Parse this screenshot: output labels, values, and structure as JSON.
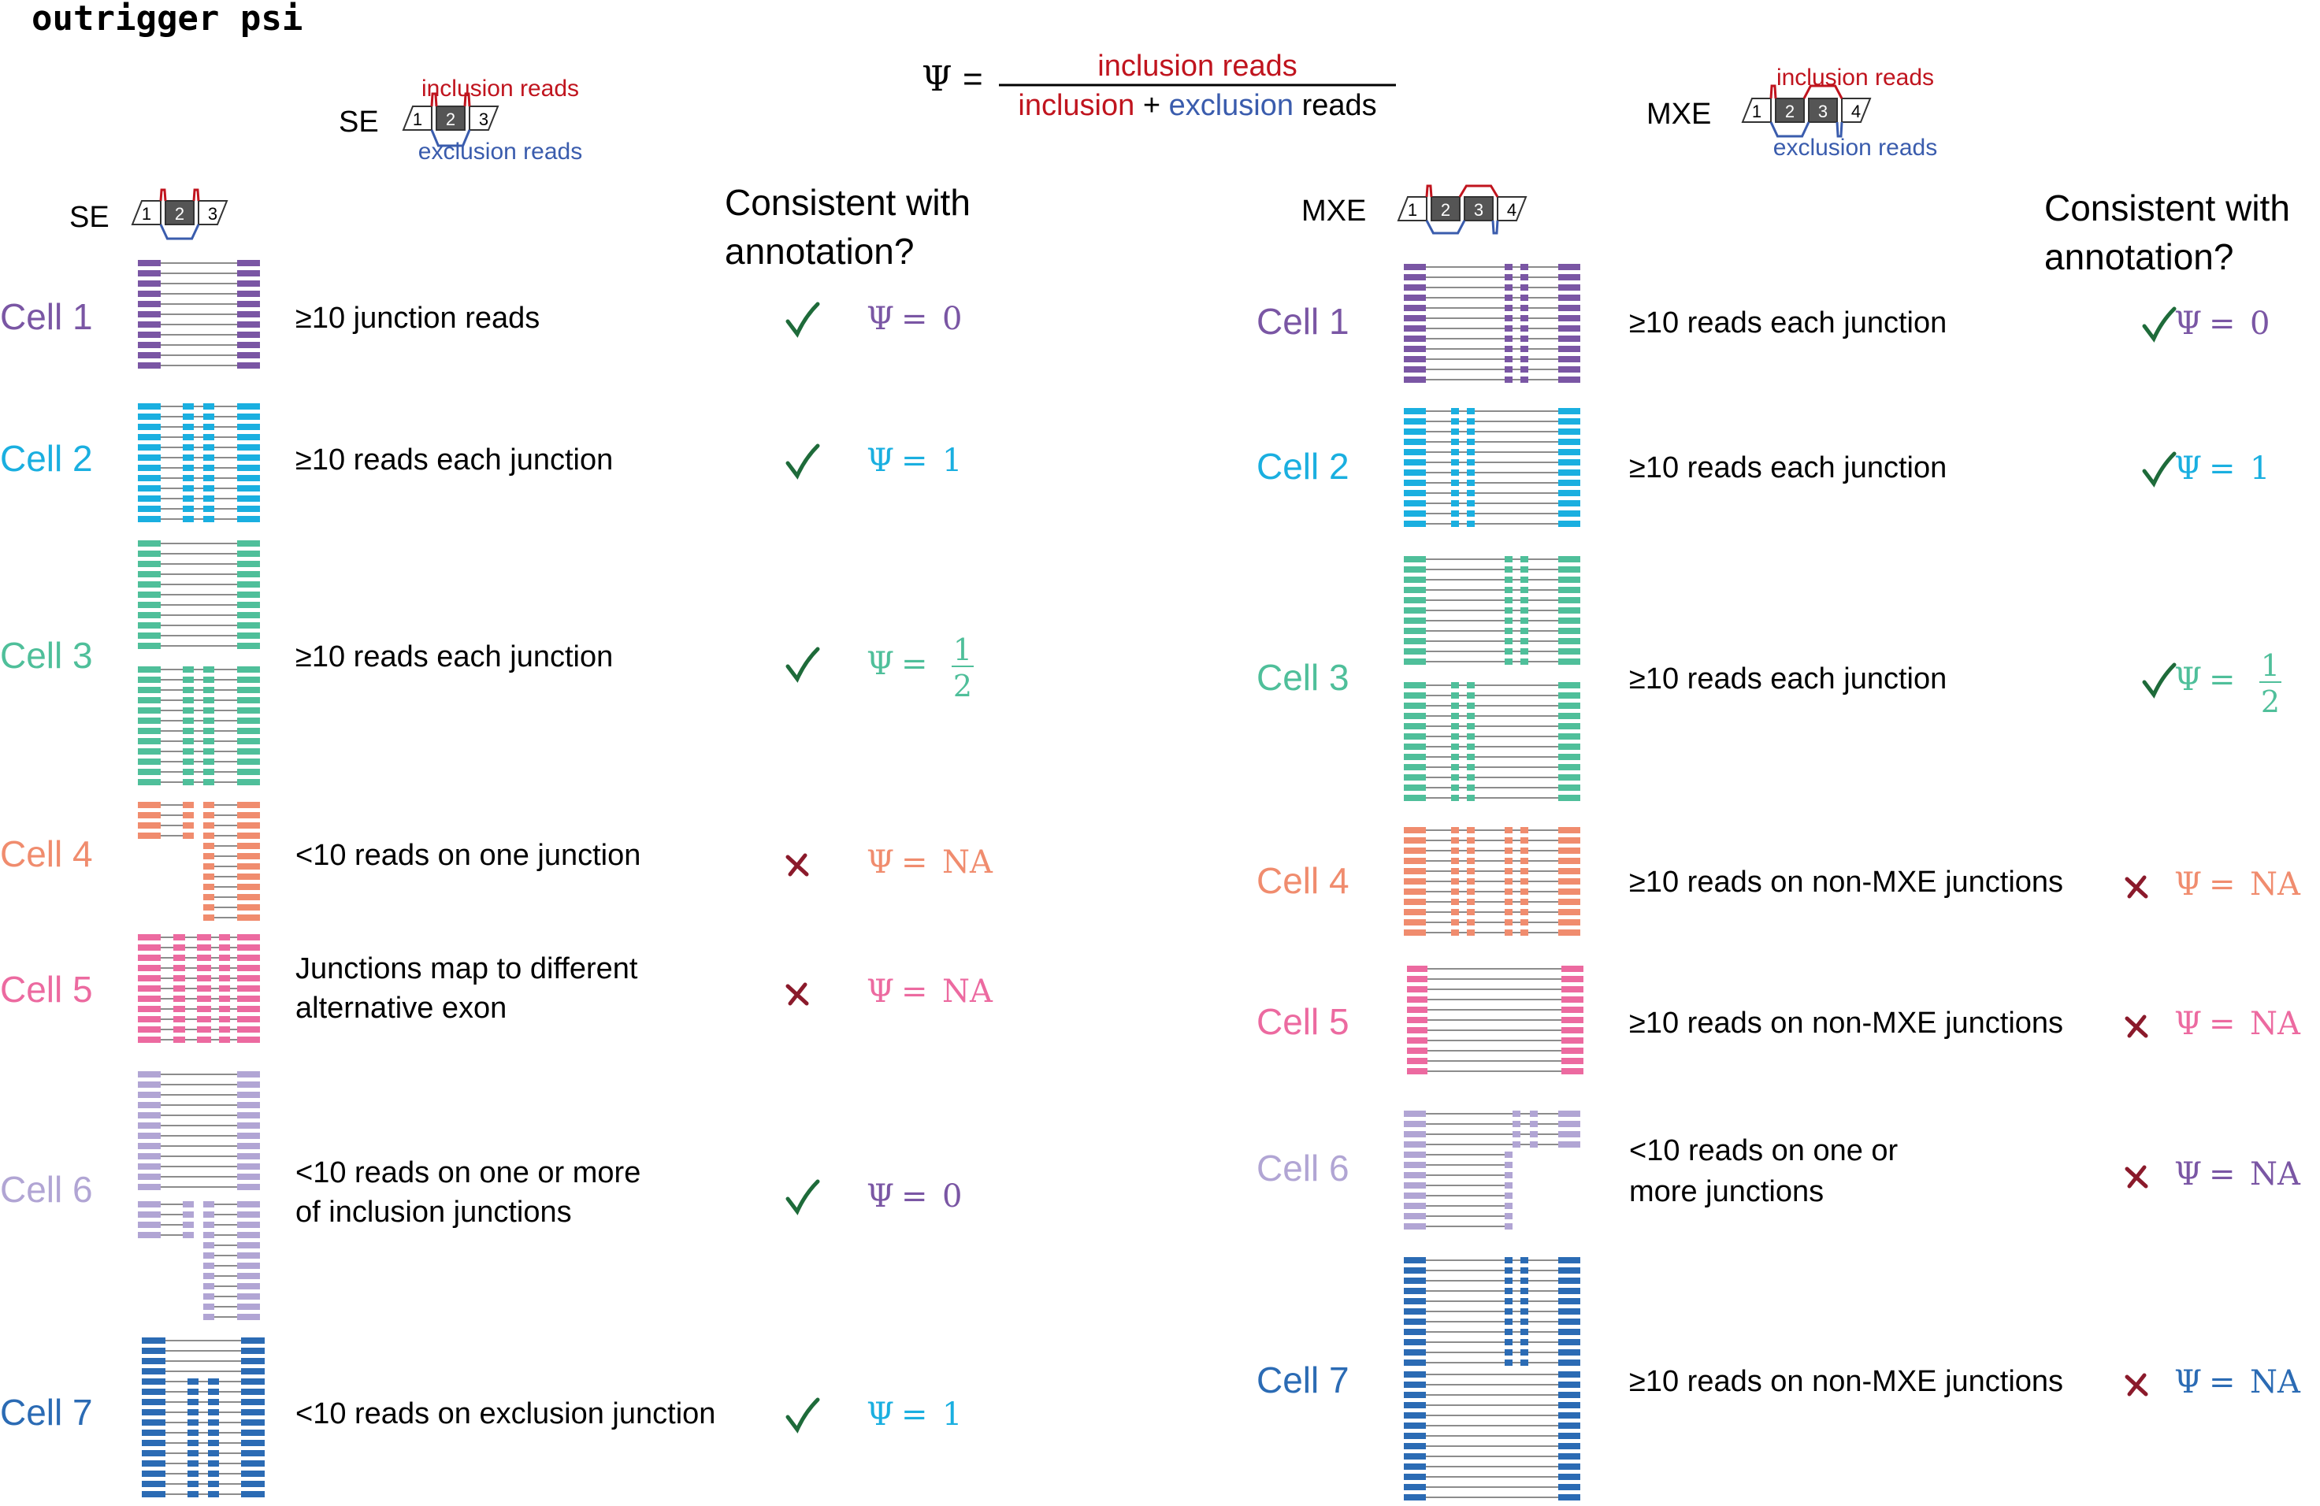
{
  "title": "outrigger psi",
  "colors": {
    "inclusion": "#c0141e",
    "exclusion": "#3a5cad",
    "check": "#1e6b3a",
    "cross": "#8b1a2b",
    "line": "#8c8c8c",
    "exon_dark": "#555555",
    "cells": [
      "#7a56a4",
      "#1aafe0",
      "#4fbf9a",
      "#f08c6e",
      "#ec6aa0",
      "#b1a5d4",
      "#2b6bb4"
    ]
  },
  "formula": {
    "psi": "Ψ",
    "equals": "=",
    "numerator": "inclusion reads",
    "denominator_inclusion": "inclusion",
    "plus": "+",
    "denominator_exclusion": "exclusion",
    "denominator_reads": "reads"
  },
  "se_legend": {
    "label": "SE",
    "inclusion_label": "inclusion reads",
    "exclusion_label": "exclusion reads",
    "exons": [
      "1",
      "2",
      "3"
    ]
  },
  "mxe_legend": {
    "label": "MXE",
    "inclusion_label": "inclusion reads",
    "exclusion_label": "exclusion reads",
    "exons": [
      "1",
      "2",
      "3",
      "4"
    ]
  },
  "se_panel": {
    "header_label": "SE",
    "header_exons": [
      "1",
      "2",
      "3"
    ],
    "consistent_line1": "Consistent with",
    "consistent_line2": "annotation?",
    "rows": [
      {
        "cell": "Cell 1",
        "line1": "≥10 junction reads",
        "line2": "",
        "mark": "check",
        "psi_value": "0",
        "psi_color": "#7a56a4"
      },
      {
        "cell": "Cell 2",
        "line1": "≥10 reads each junction",
        "line2": "",
        "mark": "check",
        "psi_value": "1",
        "psi_color": "#1aafe0"
      },
      {
        "cell": "Cell 3",
        "line1": "≥10 reads each junction",
        "line2": "",
        "mark": "check",
        "psi_num": "1",
        "psi_den": "2",
        "psi_color": "#4fbf9a"
      },
      {
        "cell": "Cell 4",
        "line1": "<10 reads on one junction",
        "line2": "",
        "mark": "cross",
        "psi_value": "NA",
        "psi_color": "#f08c6e"
      },
      {
        "cell": "Cell 5",
        "line1": "Junctions map to different",
        "line2": "alternative exon",
        "mark": "cross",
        "psi_value": "NA",
        "psi_color": "#ec6aa0"
      },
      {
        "cell": "Cell 6",
        "line1": "<10 reads on one or more",
        "line2": "of inclusion junctions",
        "mark": "check",
        "psi_value": "0",
        "psi_color": "#7a56a4"
      },
      {
        "cell": "Cell 7",
        "line1": "<10 reads on exclusion junction",
        "line2": "",
        "mark": "check",
        "psi_value": "1",
        "psi_color": "#1aafe0"
      }
    ]
  },
  "mxe_panel": {
    "header_label": "MXE",
    "header_exons": [
      "1",
      "2",
      "3",
      "4"
    ],
    "consistent_line1": "Consistent with",
    "consistent_line2": "annotation?",
    "rows": [
      {
        "cell": "Cell 1",
        "line1": "≥10 reads each junction",
        "line2": "",
        "mark": "check",
        "psi_value": "0",
        "psi_color": "#7a56a4"
      },
      {
        "cell": "Cell 2",
        "line1": "≥10 reads each junction",
        "line2": "",
        "mark": "check",
        "psi_value": "1",
        "psi_color": "#1aafe0"
      },
      {
        "cell": "Cell 3",
        "line1": "≥10 reads each junction",
        "line2": "",
        "mark": "check",
        "psi_num": "1",
        "psi_den": "2",
        "psi_color": "#4fbf9a"
      },
      {
        "cell": "Cell 4",
        "line1": "≥10 reads on non-MXE junctions",
        "line2": "",
        "mark": "cross",
        "psi_value": "NA",
        "psi_color": "#f08c6e"
      },
      {
        "cell": "Cell 5",
        "line1": "≥10 reads on non-MXE junctions",
        "line2": "",
        "mark": "cross",
        "psi_value": "NA",
        "psi_color": "#ec6aa0"
      },
      {
        "cell": "Cell 6",
        "line1": "<10 reads on one or",
        "line2": "more junctions",
        "mark": "cross",
        "psi_value": "NA",
        "psi_color": "#7a56a4"
      },
      {
        "cell": "Cell 7",
        "line1": "≥10 reads on non-MXE junctions",
        "line2": "",
        "mark": "cross",
        "psi_value": "NA",
        "psi_color": "#2b6bb4"
      }
    ]
  }
}
